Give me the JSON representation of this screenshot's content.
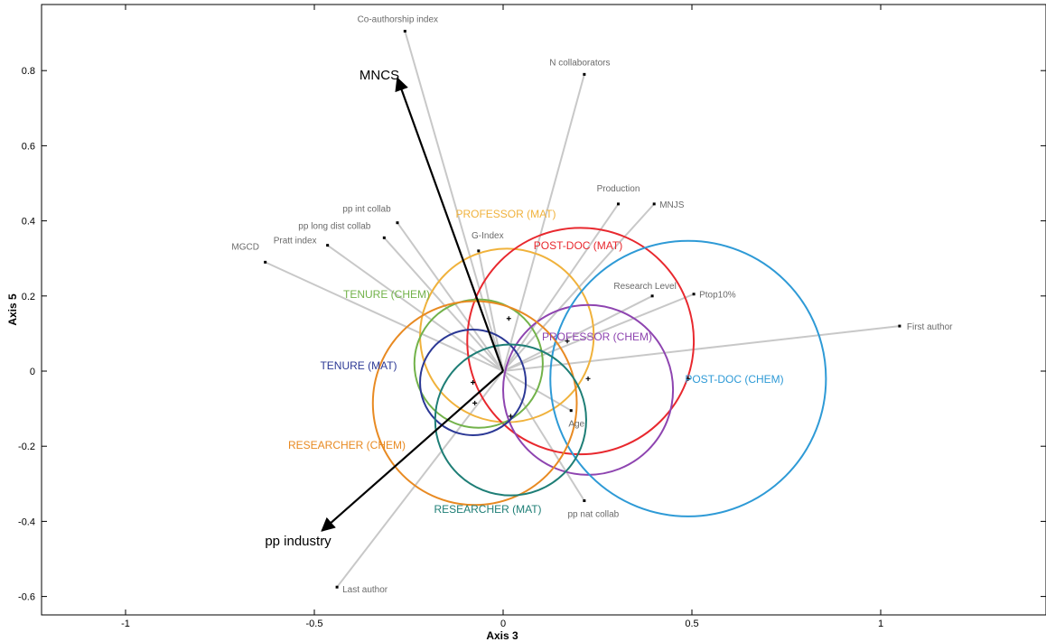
{
  "chart_data": {
    "type": "scatter",
    "title": "",
    "xlabel": "Axis 3",
    "ylabel": "Axis 5",
    "xlim": [
      -1.23,
      1.4
    ],
    "ylim": [
      -0.66,
      0.96
    ],
    "xticks": [
      -1,
      -0.5,
      0,
      0.5,
      1
    ],
    "yticks": [
      -0.6,
      -0.4,
      -0.2,
      0,
      0.2,
      0.4,
      0.6,
      0.8
    ],
    "grid": false,
    "variables": [
      {
        "name": "Co-authorship index",
        "x": -0.26,
        "y": 0.905
      },
      {
        "name": "N collaborators",
        "x": 0.215,
        "y": 0.79
      },
      {
        "name": "Production",
        "x": 0.305,
        "y": 0.445
      },
      {
        "name": "MNJS",
        "x": 0.4,
        "y": 0.445
      },
      {
        "name": "pp int collab",
        "x": -0.28,
        "y": 0.395
      },
      {
        "name": "pp long dist collab",
        "x": -0.315,
        "y": 0.355
      },
      {
        "name": "Pratt index",
        "x": -0.465,
        "y": 0.335
      },
      {
        "name": "MGCD",
        "x": -0.63,
        "y": 0.29
      },
      {
        "name": "G-Index",
        "x": -0.065,
        "y": 0.32
      },
      {
        "name": "Research Level",
        "x": 0.395,
        "y": 0.2
      },
      {
        "name": "Ptop10%",
        "x": 0.505,
        "y": 0.205
      },
      {
        "name": "First author",
        "x": 1.05,
        "y": 0.12
      },
      {
        "name": "Age",
        "x": 0.18,
        "y": -0.105
      },
      {
        "name": "pp nat collab",
        "x": 0.215,
        "y": -0.345
      },
      {
        "name": "Last author",
        "x": -0.44,
        "y": -0.575
      }
    ],
    "supplementary_vectors": [
      {
        "name": "MNCS",
        "x": -0.28,
        "y": 0.78
      },
      {
        "name": "pp industry",
        "x": -0.48,
        "y": -0.425
      }
    ],
    "groups": [
      {
        "name": "PROFESSOR (MAT)",
        "cx": 0.01,
        "cy": 0.095,
        "r": 0.23,
        "color": "#F0B23C"
      },
      {
        "name": "POST-DOC (MAT)",
        "cx": 0.205,
        "cy": 0.08,
        "r": 0.3,
        "color": "#E8282E"
      },
      {
        "name": "TENURE (CHEM)",
        "cx": -0.065,
        "cy": 0.02,
        "r": 0.17,
        "color": "#72B24A"
      },
      {
        "name": "PROFESSOR (CHEM)",
        "cx": 0.225,
        "cy": -0.05,
        "r": 0.225,
        "color": "#8E44B0"
      },
      {
        "name": "POST-DOC (CHEM)",
        "cx": 0.49,
        "cy": -0.02,
        "r": 0.365,
        "color": "#2E9AD6"
      },
      {
        "name": "TENURE (MAT)",
        "cx": -0.08,
        "cy": -0.03,
        "r": 0.14,
        "color": "#2B3895"
      },
      {
        "name": "RESEARCHER (CHEM)",
        "cx": -0.075,
        "cy": -0.085,
        "r": 0.27,
        "color": "#E88A22"
      },
      {
        "name": "RESEARCHER (MAT)",
        "cx": 0.02,
        "cy": -0.13,
        "r": 0.2,
        "color": "#1E7E76"
      }
    ],
    "group_centers": [
      {
        "x": 0.015,
        "y": 0.14
      },
      {
        "x": 0.17,
        "y": 0.08
      },
      {
        "x": 0.225,
        "y": -0.02
      },
      {
        "x": 0.49,
        "y": -0.02
      },
      {
        "x": -0.08,
        "y": -0.03
      },
      {
        "x": -0.075,
        "y": -0.085
      },
      {
        "x": 0.02,
        "y": -0.12
      }
    ]
  }
}
